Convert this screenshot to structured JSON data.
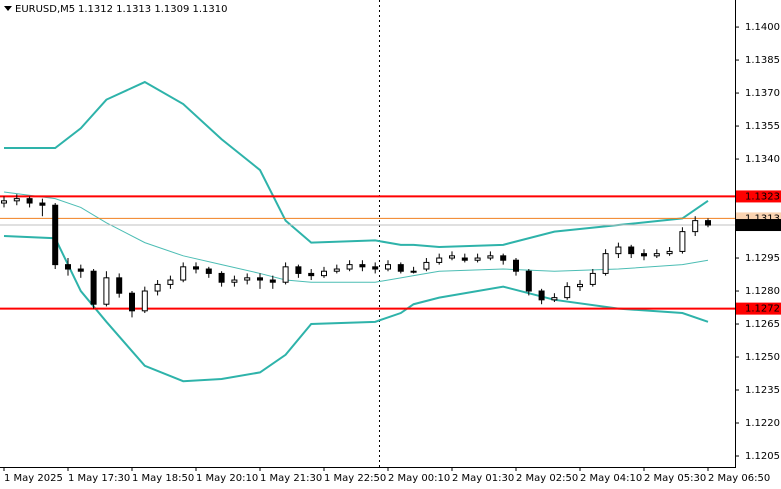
{
  "chart_data": {
    "type": "candlestick",
    "symbol": "EURUSD,M5",
    "ohlc_header": "1.1312 1.1313 1.1309 1.1310",
    "categories": [
      "1 May 2025",
      null,
      null,
      null,
      null,
      "1 May 17:30",
      null,
      null,
      null,
      null,
      "1 May 18:50",
      null,
      null,
      null,
      null,
      "1 May 20:10",
      null,
      null,
      null,
      null,
      "1 May 21:30",
      null,
      null,
      null,
      null,
      "1 May 22:50",
      null,
      null,
      null,
      null,
      "2 May 00:10",
      null,
      null,
      null,
      null,
      "2 May 01:30",
      null,
      null,
      null,
      null,
      "2 May 02:50",
      null,
      null,
      null,
      null,
      "2 May 04:10",
      null,
      null,
      null,
      null,
      "2 May 05:30",
      null,
      null,
      null,
      null,
      "2 May 06:50"
    ],
    "open": [
      1.132,
      1.1321,
      1.1322,
      1.132,
      1.1319,
      1.1292,
      1.129,
      1.1289,
      1.1274,
      1.1286,
      1.1279,
      1.1271,
      1.128,
      1.1283,
      1.1285,
      1.1291,
      1.129,
      1.1288,
      1.1284,
      1.1285,
      1.1286,
      1.1285,
      1.1284,
      1.1291,
      1.1288,
      1.1287,
      1.1289,
      1.129,
      1.1292,
      1.1291,
      1.129,
      1.1292,
      1.1289,
      1.129,
      1.1293,
      1.1295,
      1.1295,
      1.1294,
      1.1295,
      1.1296,
      1.1294,
      1.1289,
      1.128,
      1.1276,
      1.1277,
      1.1282,
      1.1283,
      1.1288,
      1.1297,
      1.13,
      1.1297,
      1.1296,
      1.1297,
      1.1298,
      1.1307,
      1.1312
    ],
    "high": [
      1.1323,
      1.1324,
      1.1323,
      1.1322,
      1.132,
      1.1295,
      1.1292,
      1.129,
      1.1289,
      1.1288,
      1.128,
      1.1282,
      1.1285,
      1.1287,
      1.1293,
      1.1293,
      1.1291,
      1.1289,
      1.1287,
      1.1288,
      1.1288,
      1.1287,
      1.1293,
      1.1292,
      1.129,
      1.1291,
      1.1292,
      1.1294,
      1.1294,
      1.1293,
      1.1294,
      1.1293,
      1.1291,
      1.1295,
      1.1297,
      1.1298,
      1.1297,
      1.1297,
      1.1298,
      1.1297,
      1.1295,
      1.129,
      1.1281,
      1.1279,
      1.1284,
      1.1285,
      1.129,
      1.1299,
      1.1302,
      1.1301,
      1.1299,
      1.1299,
      1.13,
      1.1309,
      1.1314,
      1.1313
    ],
    "low": [
      1.1318,
      1.1319,
      1.1318,
      1.1314,
      1.129,
      1.1287,
      1.1286,
      1.1272,
      1.1273,
      1.1277,
      1.1268,
      1.127,
      1.1278,
      1.1281,
      1.1284,
      1.1288,
      1.1286,
      1.1282,
      1.1282,
      1.1283,
      1.1281,
      1.1281,
      1.1283,
      1.1286,
      1.1285,
      1.1286,
      1.1288,
      1.1289,
      1.1289,
      1.1288,
      1.1289,
      1.1288,
      1.1288,
      1.1289,
      1.1292,
      1.1294,
      1.1293,
      1.1293,
      1.1294,
      1.1292,
      1.1287,
      1.1278,
      1.1274,
      1.1275,
      1.1276,
      1.128,
      1.1282,
      1.1287,
      1.1295,
      1.1295,
      1.1294,
      1.1295,
      1.1296,
      1.1297,
      1.1305,
      1.1309
    ],
    "close": [
      1.1321,
      1.1322,
      1.132,
      1.1319,
      1.1292,
      1.129,
      1.1289,
      1.1274,
      1.1286,
      1.1279,
      1.1271,
      1.128,
      1.1283,
      1.1285,
      1.1291,
      1.129,
      1.1288,
      1.1284,
      1.1285,
      1.1286,
      1.1285,
      1.1284,
      1.1291,
      1.1288,
      1.1287,
      1.1289,
      1.129,
      1.1292,
      1.1291,
      1.129,
      1.1292,
      1.1289,
      1.1289,
      1.1293,
      1.1295,
      1.1296,
      1.1294,
      1.1295,
      1.1296,
      1.1294,
      1.1289,
      1.128,
      1.1276,
      1.1277,
      1.1282,
      1.1283,
      1.1288,
      1.1297,
      1.13,
      1.1297,
      1.1296,
      1.1297,
      1.1298,
      1.1307,
      1.1312,
      1.131
    ],
    "bands": {
      "x": [
        0,
        4,
        6,
        8,
        11,
        14,
        17,
        20,
        22,
        24,
        29,
        31,
        32,
        34,
        39,
        43,
        48,
        53,
        55
      ],
      "upper": [
        1.1345,
        1.1345,
        1.1354,
        1.1367,
        1.1375,
        1.1365,
        1.1349,
        1.1335,
        1.1312,
        1.1302,
        1.1303,
        1.1301,
        1.1301,
        1.13,
        1.1301,
        1.1307,
        1.131,
        1.1313,
        1.1321
      ],
      "middle": [
        1.1325,
        1.1322,
        1.1318,
        1.1311,
        1.1302,
        1.1296,
        1.1292,
        1.1288,
        1.1285,
        1.1284,
        1.1284,
        1.1286,
        1.1287,
        1.1289,
        1.129,
        1.1289,
        1.129,
        1.1292,
        1.1294
      ],
      "lower": [
        1.1305,
        1.1304,
        1.128,
        1.1266,
        1.1246,
        1.1239,
        1.124,
        1.1243,
        1.1251,
        1.1265,
        1.1266,
        1.127,
        1.1274,
        1.1277,
        1.1282,
        1.1276,
        1.1272,
        1.127,
        1.1266
      ],
      "color": "#2eb3aa",
      "middle_color": "#4cbdb4"
    },
    "hlines": [
      {
        "value": 1.1323,
        "label": "1.1323",
        "color": "#ff0000"
      },
      {
        "value": 1.1272,
        "label": "1.1272",
        "color": "#ff0000"
      },
      {
        "value": 1.1313,
        "label": "1.1313",
        "color": "#f08020"
      }
    ],
    "last_price": {
      "value": 1.131,
      "label": "1.1310"
    },
    "ylim": [
      1.12,
      1.14123
    ],
    "yticks": [
      {
        "value": 1.1205,
        "label": "1.1205"
      },
      {
        "value": 1.122,
        "label": "1.1220"
      },
      {
        "value": 1.1235,
        "label": "1.1235"
      },
      {
        "value": 1.125,
        "label": "1.1250"
      },
      {
        "value": 1.1265,
        "label": "1.1265"
      },
      {
        "value": 1.128,
        "label": "1.1280"
      },
      {
        "value": 1.1295,
        "label": "1.1295"
      },
      {
        "value": 1.134,
        "label": "1.1340"
      },
      {
        "value": 1.1355,
        "label": "1.1355"
      },
      {
        "value": 1.137,
        "label": "1.1370"
      },
      {
        "value": 1.1385,
        "label": "1.1385"
      },
      {
        "value": 1.14,
        "label": "1.1400"
      }
    ],
    "grid": false
  }
}
